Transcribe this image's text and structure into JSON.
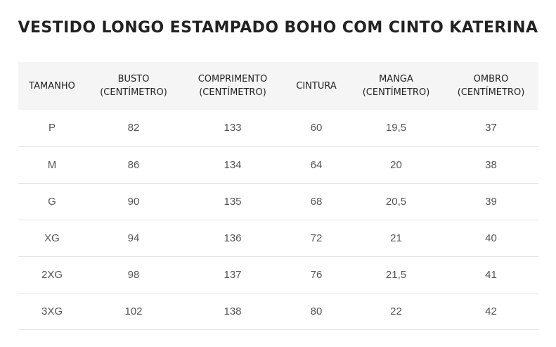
{
  "title": "VESTIDO LONGO ESTAMPADO BOHO COM CINTO KATERINA",
  "table": {
    "headers": [
      {
        "line1": "TAMANHO",
        "line2": ""
      },
      {
        "line1": "BUSTO",
        "line2": "(CENTÍMETRO)"
      },
      {
        "line1": "COMPRIMENTO",
        "line2": "(CENTÍMETRO)"
      },
      {
        "line1": "CINTURA",
        "line2": ""
      },
      {
        "line1": "MANGA",
        "line2": "(CENTÍMETRO)"
      },
      {
        "line1": "OMBRO",
        "line2": "(CENTÍMETRO)"
      }
    ],
    "rows": [
      [
        "P",
        "82",
        "133",
        "60",
        "19,5",
        "37"
      ],
      [
        "M",
        "86",
        "134",
        "64",
        "20",
        "38"
      ],
      [
        "G",
        "90",
        "135",
        "68",
        "20,5",
        "39"
      ],
      [
        "XG",
        "94",
        "136",
        "72",
        "21",
        "40"
      ],
      [
        "2XG",
        "98",
        "137",
        "76",
        "21,5",
        "41"
      ],
      [
        "3XG",
        "102",
        "138",
        "80",
        "22",
        "42"
      ]
    ]
  },
  "colors": {
    "header_background": "#f5f5f5",
    "row_divider": "#e3e3e3",
    "title_text": "#222222",
    "cell_text": "#555555"
  }
}
